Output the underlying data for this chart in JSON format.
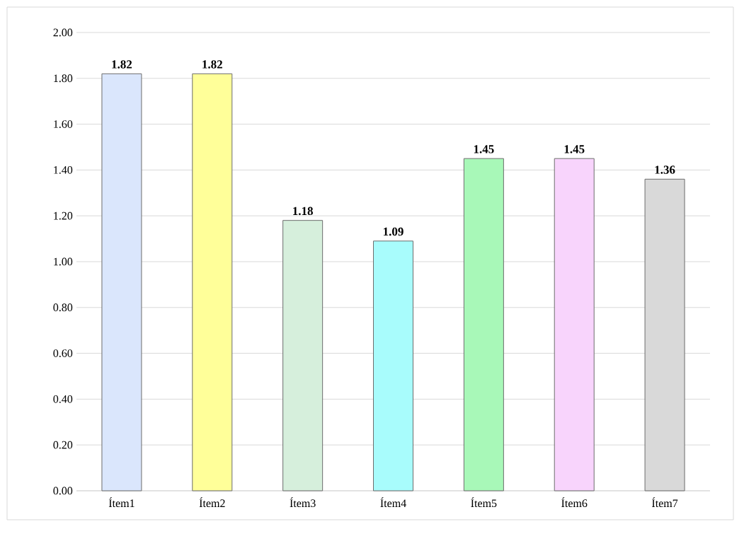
{
  "chart_data": {
    "type": "bar",
    "categories": [
      "Ítem1",
      "Ítem2",
      "Ítem3",
      "Ítem4",
      "Ítem5",
      "Ítem6",
      "Ítem7"
    ],
    "values": [
      1.82,
      1.82,
      1.18,
      1.09,
      1.45,
      1.45,
      1.36
    ],
    "colors": [
      "#dae6fc",
      "#ffff99",
      "#d6efdc",
      "#a8fcfc",
      "#a8f8b8",
      "#f8d4fc",
      "#d9d9d9"
    ],
    "ylim": [
      0,
      2
    ],
    "yticks": [
      {
        "value": 0,
        "label": "0.00"
      },
      {
        "value": 0.2,
        "label": "0.20"
      },
      {
        "value": 0.4,
        "label": "0.40"
      },
      {
        "value": 0.6,
        "label": "0.60"
      },
      {
        "value": 0.8,
        "label": "0.80"
      },
      {
        "value": 1,
        "label": "1.00"
      },
      {
        "value": 1.2,
        "label": "1.20"
      },
      {
        "value": 1.4,
        "label": "1.40"
      },
      {
        "value": 1.6,
        "label": "1.60"
      },
      {
        "value": 1.8,
        "label": "1.80"
      },
      {
        "value": 2,
        "label": "2.00"
      }
    ],
    "grid": "y",
    "data_labels": true
  }
}
